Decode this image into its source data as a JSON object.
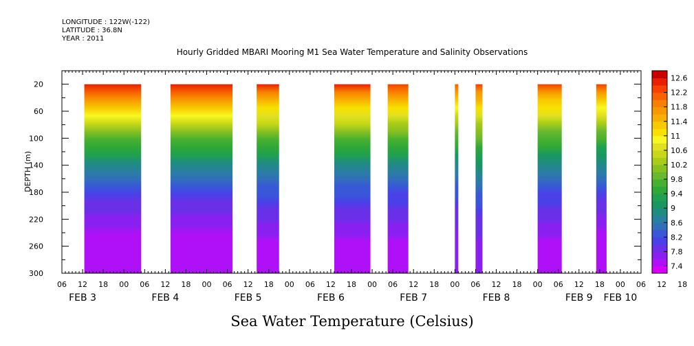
{
  "header": {
    "longitude": "LONGITUDE : 122W(-122)",
    "latitude": "LATITUDE : 36.8N",
    "year": "YEAR : 2011"
  },
  "chart_data": {
    "type": "heatmap",
    "title": "Hourly Gridded MBARI Mooring M1 Sea Water Temperature and Salinity Observations",
    "xlabel": "Sea Water Temperature (Celsius)",
    "ylabel": "DEPTH (m)",
    "x_range_hours": [
      6,
      174
    ],
    "ylim": [
      300,
      0
    ],
    "y_ticks": [
      20,
      60,
      100,
      140,
      180,
      220,
      260,
      300
    ],
    "x_tick_hours": [
      "06",
      "12",
      "18",
      "00",
      "06",
      "12",
      "18",
      "00",
      "06",
      "12",
      "18",
      "00",
      "06",
      "12",
      "18",
      "00",
      "06",
      "12",
      "18",
      "00",
      "06",
      "12",
      "18",
      "00",
      "06",
      "12",
      "18",
      "00",
      "06",
      "12",
      "18",
      "00",
      "06"
    ],
    "day_labels": [
      {
        "label": "FEB  3",
        "hour": 12
      },
      {
        "label": "FEB  4",
        "hour": 36
      },
      {
        "label": "FEB  5",
        "hour": 60
      },
      {
        "label": "FEB  6",
        "hour": 84
      },
      {
        "label": "FEB  7",
        "hour": 108
      },
      {
        "label": "FEB  8",
        "hour": 132
      },
      {
        "label": "FEB  9",
        "hour": 156
      },
      {
        "label": "FEB 10",
        "hour": 168
      }
    ],
    "colorbar": {
      "levels": [
        7.2,
        7.4,
        7.6,
        7.8,
        8.0,
        8.2,
        8.4,
        8.6,
        8.8,
        9.0,
        9.2,
        9.4,
        9.6,
        9.8,
        10.0,
        10.2,
        10.4,
        10.6,
        10.8,
        11.0,
        11.2,
        11.4,
        11.6,
        11.8,
        12.0,
        12.2,
        12.4,
        12.6,
        12.8
      ],
      "labels": [
        "7.4",
        "7.8",
        "8.2",
        "8.6",
        "9",
        "9.4",
        "9.8",
        "10.2",
        "10.6",
        "11",
        "11.4",
        "11.8",
        "12.2",
        "12.6"
      ],
      "colors": [
        "#d800f8",
        "#b010f8",
        "#8a20f0",
        "#6a30e8",
        "#4a40e8",
        "#3858d8",
        "#3070b8",
        "#2880a0",
        "#208c80",
        "#189860",
        "#20a050",
        "#30a838",
        "#48b030",
        "#68b830",
        "#88c020",
        "#a8cc18",
        "#c8d818",
        "#e0e020",
        "#f8f820",
        "#f8e000",
        "#f8c800",
        "#f8b000",
        "#f89800",
        "#f88000",
        "#f86000",
        "#f84000",
        "#e82000",
        "#c80000"
      ]
    },
    "segments": [
      {
        "start_hour": 12.5,
        "end_hour": 29,
        "top_temp": 12.5,
        "bottom_temp": 7.4
      },
      {
        "start_hour": 37.5,
        "end_hour": 55.5,
        "top_temp": 12.5,
        "bottom_temp": 7.4
      },
      {
        "start_hour": 62.5,
        "end_hour": 69,
        "top_temp": 12.4,
        "bottom_temp": 7.5
      },
      {
        "start_hour": 85,
        "end_hour": 95.5,
        "top_temp": 12.4,
        "bottom_temp": 7.5
      },
      {
        "start_hour": 100.5,
        "end_hour": 106.5,
        "top_temp": 12.3,
        "bottom_temp": 7.5
      },
      {
        "start_hour": 120,
        "end_hour": 121,
        "top_temp": 12.0,
        "bottom_temp": 7.6
      },
      {
        "start_hour": 126,
        "end_hour": 128,
        "top_temp": 12.2,
        "bottom_temp": 7.7
      },
      {
        "start_hour": 144,
        "end_hour": 151,
        "top_temp": 12.2,
        "bottom_temp": 7.5
      },
      {
        "start_hour": 161,
        "end_hour": 164,
        "top_temp": 12.2,
        "bottom_temp": 7.4
      }
    ]
  }
}
